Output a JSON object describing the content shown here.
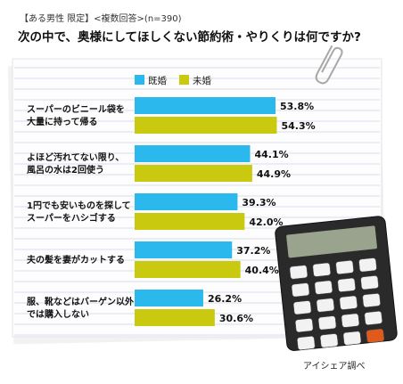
{
  "header": {
    "subtitle": "【ある男性 限定】<複数回答>(n=390)",
    "title": "次の中で、奥様にしてほしくない節約術・やりくりは何ですか?"
  },
  "source": "アイシェア調べ",
  "colors": {
    "married": "#2bb8ec",
    "unmarried": "#c9c910",
    "line": "#c8d4e4",
    "paper": "#fdfdfd"
  },
  "icons": [
    "paperclip-icon",
    "calculator-icon"
  ],
  "chart_data": {
    "type": "bar",
    "orientation": "horizontal",
    "categories": [
      [
        "スーパーのビニール袋を",
        "大量に持って帰る"
      ],
      [
        "よほど汚れてない限り、",
        "風呂の水は2回使う"
      ],
      [
        "1円でも安いものを探して",
        "スーパーをハシゴする"
      ],
      [
        "夫の髪を妻がカットする"
      ],
      [
        "服、靴などはバーゲン以外",
        "では購入しない"
      ]
    ],
    "series": [
      {
        "name": "既婚",
        "values": [
          53.8,
          44.1,
          39.3,
          37.2,
          26.2
        ]
      },
      {
        "name": "未婚",
        "values": [
          54.3,
          44.9,
          42.0,
          40.4,
          30.6
        ]
      }
    ],
    "value_suffix": "%",
    "xlim": [
      0,
      60
    ],
    "legend_position": "top"
  }
}
